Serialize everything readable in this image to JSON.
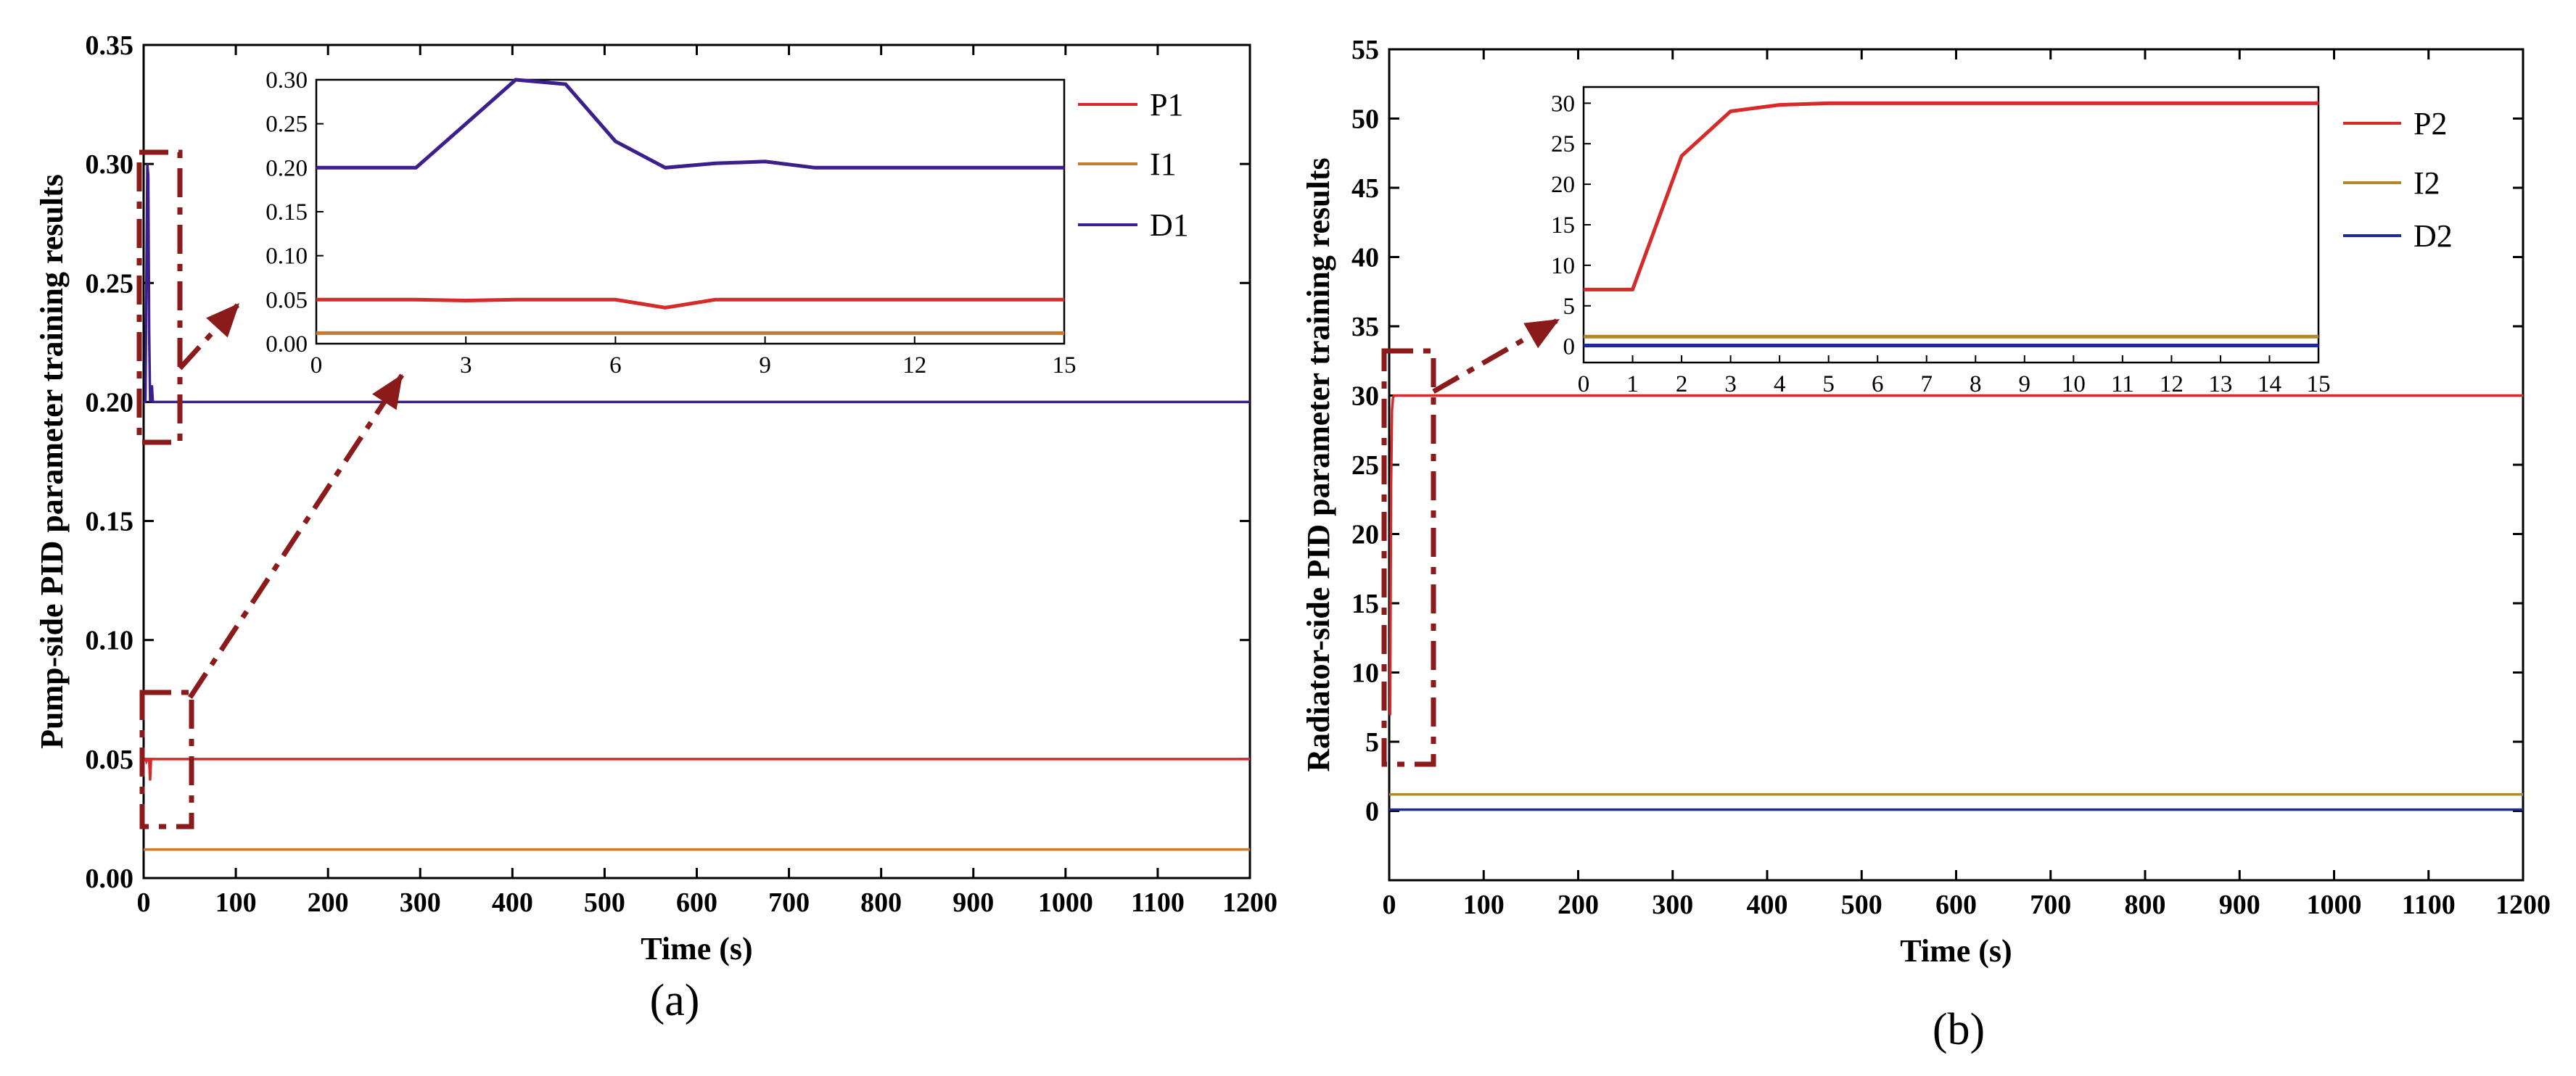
{
  "chart_data": [
    {
      "type": "line",
      "panel_label": "(a)",
      "xlabel": "Time (s)",
      "ylabel": "Pump-side PID parameter training results",
      "xlim": [
        0,
        1200
      ],
      "ylim": [
        0,
        0.35
      ],
      "xticks": [
        0,
        100,
        200,
        300,
        400,
        500,
        600,
        700,
        800,
        900,
        1000,
        1100,
        1200
      ],
      "yticks": [
        "0.00",
        "0.05",
        "0.10",
        "0.15",
        "0.20",
        "0.25",
        "0.30",
        "0.35"
      ],
      "legend": "top-right",
      "grid": false,
      "colors": {
        "P": "#d62b2b",
        "I": "#c87a2e",
        "D": "#3c1e8c",
        "annotation": "#8b1a1a"
      },
      "series": [
        {
          "name": "P1",
          "color": "#d62b2b",
          "x": [
            0,
            2,
            3,
            4,
            5,
            6,
            7,
            8,
            10,
            1200
          ],
          "y": [
            0.05,
            0.05,
            0.049,
            0.05,
            0.05,
            0.05,
            0.041,
            0.05,
            0.05,
            0.05
          ]
        },
        {
          "name": "I1",
          "color": "#c87a2e",
          "x": [
            0,
            1200
          ],
          "y": [
            0.012,
            0.012
          ]
        },
        {
          "name": "D1",
          "color": "#3c1e8c",
          "x": [
            0,
            2,
            3,
            4,
            5,
            6,
            7,
            8,
            9,
            10,
            1200
          ],
          "y": [
            0.2,
            0.2,
            0.25,
            0.3,
            0.295,
            0.23,
            0.2,
            0.205,
            0.207,
            0.2,
            0.2
          ]
        }
      ],
      "inset": {
        "xlim": [
          0,
          15
        ],
        "ylim": [
          0,
          0.3
        ],
        "xticks": [
          0,
          3,
          6,
          9,
          12,
          15
        ],
        "yticks": [
          "0.00",
          "0.05",
          "0.10",
          "0.15",
          "0.20",
          "0.25",
          "0.30"
        ]
      }
    },
    {
      "type": "line",
      "panel_label": "(b)",
      "xlabel": "Time (s)",
      "ylabel": "Radiator-side PID parameter training results",
      "xlim": [
        0,
        1200
      ],
      "ylim": [
        -5,
        55
      ],
      "xticks": [
        0,
        100,
        200,
        300,
        400,
        500,
        600,
        700,
        800,
        900,
        1000,
        1100,
        1200
      ],
      "yticks": [
        "0",
        "5",
        "10",
        "15",
        "20",
        "25",
        "30",
        "35",
        "40",
        "45",
        "50",
        "55"
      ],
      "legend": "top-right",
      "grid": false,
      "colors": {
        "P": "#d62b2b",
        "I": "#b0882a",
        "D": "#1c2a9c",
        "annotation": "#8b1a1a"
      },
      "series": [
        {
          "name": "P2",
          "color": "#d62b2b",
          "x": [
            0,
            1,
            2,
            3,
            4,
            5,
            15,
            1200
          ],
          "y": [
            7,
            7,
            23.5,
            29,
            29.8,
            30,
            30,
            30
          ]
        },
        {
          "name": "I2",
          "color": "#b0882a",
          "x": [
            0,
            1200
          ],
          "y": [
            1.2,
            1.2
          ]
        },
        {
          "name": "D2",
          "color": "#1c2a9c",
          "x": [
            0,
            1200
          ],
          "y": [
            0.1,
            0.1
          ]
        }
      ],
      "inset": {
        "xlim": [
          0,
          15
        ],
        "ylim": [
          -2,
          32
        ],
        "xticks": [
          0,
          1,
          2,
          3,
          4,
          5,
          6,
          7,
          8,
          9,
          10,
          11,
          12,
          13,
          14,
          15
        ],
        "yticks": [
          "0",
          "5",
          "10",
          "15",
          "20",
          "25",
          "30"
        ]
      }
    }
  ]
}
